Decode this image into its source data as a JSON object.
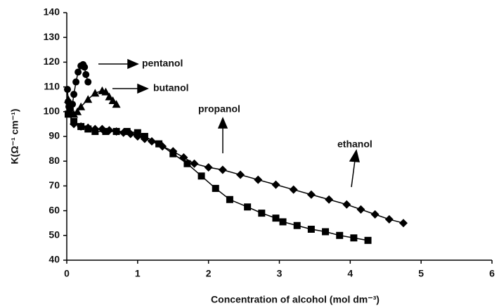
{
  "chart_data": {
    "type": "line",
    "xlabel": "Concentration of alcohol (mol dm⁻³)",
    "ylabel": "K(Ω⁻¹ cm⁻¹)",
    "xlim": [
      0,
      6
    ],
    "xticks": [
      0,
      1,
      2,
      3,
      4,
      5,
      6
    ],
    "ylim": [
      40,
      140
    ],
    "yticks": [
      40,
      50,
      60,
      70,
      80,
      90,
      100,
      110,
      120,
      130,
      140
    ],
    "series": [
      {
        "name": "ethanol",
        "color": "#000000",
        "marker": "diamond",
        "x": [
          0.1,
          0.2,
          0.3,
          0.4,
          0.5,
          0.6,
          0.7,
          0.8,
          0.9,
          1.0,
          1.1,
          1.2,
          1.35,
          1.5,
          1.65,
          1.8,
          2.0,
          2.2,
          2.45,
          2.7,
          2.95,
          3.2,
          3.45,
          3.7,
          3.95,
          4.15,
          4.35,
          4.55,
          4.75
        ],
        "values": [
          95,
          94,
          93.5,
          93,
          93,
          92.5,
          92,
          91.5,
          91,
          90,
          89,
          88,
          86,
          84,
          81.5,
          79,
          77.5,
          76.5,
          74.5,
          72.5,
          70.5,
          68.5,
          66.5,
          64.5,
          62.5,
          60.5,
          58.5,
          56.5,
          55
        ]
      },
      {
        "name": "propanol",
        "color": "#000000",
        "marker": "square",
        "x": [
          0.02,
          0.1,
          0.2,
          0.3,
          0.4,
          0.55,
          0.7,
          0.85,
          1.0,
          1.1,
          1.3,
          1.5,
          1.7,
          1.9,
          2.1,
          2.3,
          2.55,
          2.75,
          2.95,
          3.05,
          3.25,
          3.45,
          3.65,
          3.85,
          4.05,
          4.25
        ],
        "values": [
          99,
          96,
          94,
          93,
          92,
          92,
          92,
          92,
          91.5,
          90,
          87,
          83,
          79,
          74,
          69,
          64.5,
          61.5,
          59,
          57,
          55.5,
          54,
          52.5,
          51.5,
          50,
          49,
          48
        ]
      },
      {
        "name": "butanol",
        "color": "#000000",
        "marker": "triangle",
        "x": [
          0.02,
          0.05,
          0.1,
          0.15,
          0.2,
          0.3,
          0.4,
          0.5,
          0.55,
          0.6,
          0.65,
          0.7
        ],
        "values": [
          105,
          100,
          99,
          100,
          102,
          105,
          107.5,
          108.5,
          108,
          106,
          104.5,
          103
        ]
      },
      {
        "name": "pentanol",
        "color": "#000000",
        "marker": "circle",
        "x": [
          0.01,
          0.02,
          0.03,
          0.05,
          0.08,
          0.1,
          0.13,
          0.16,
          0.2,
          0.23,
          0.25,
          0.27,
          0.3
        ],
        "values": [
          109,
          104,
          102,
          101,
          103,
          107,
          112,
          116,
          118.5,
          119,
          118,
          115,
          112
        ]
      }
    ]
  }
}
